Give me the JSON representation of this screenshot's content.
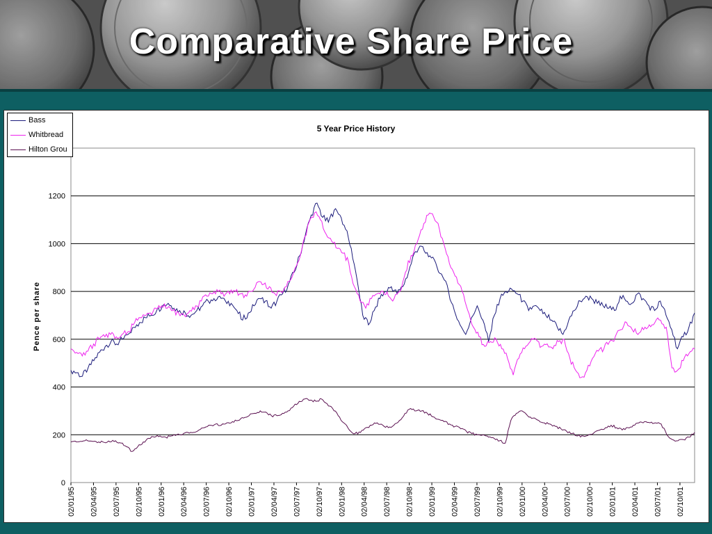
{
  "slide": {
    "title": "Comparative Share Price"
  },
  "chart_data": {
    "type": "line",
    "title": "5 Year Price History",
    "xlabel": "",
    "ylabel": "Pence per share",
    "ylim": [
      0,
      1400
    ],
    "yticks": [
      0,
      200,
      400,
      600,
      800,
      1000,
      1200
    ],
    "grid": "horizontal",
    "legend_position": "top-left",
    "x_tick_labels": [
      "02/01/95",
      "02/04/95",
      "02/07/95",
      "02/10/95",
      "02/01/96",
      "02/04/96",
      "02/07/96",
      "02/10/96",
      "02/01/97",
      "02/04/97",
      "02/07/97",
      "02/10/97",
      "02/01/98",
      "02/04/98",
      "02/07/98",
      "02/10/98",
      "02/01/99",
      "02/04/99",
      "02/07/99",
      "02/10/99",
      "02/01/00",
      "02/04/00",
      "02/07/00",
      "02/10/00",
      "02/01/01",
      "02/04/01",
      "02/07/01",
      "02/10/01"
    ],
    "series": [
      {
        "name": "Bass",
        "color": "#1a1a7a",
        "values": [
          470,
          460,
          445,
          480,
          510,
          545,
          570,
          590,
          580,
          600,
          620,
          650,
          670,
          690,
          700,
          720,
          740,
          750,
          730,
          720,
          710,
          700,
          720,
          740,
          760,
          770,
          780,
          760,
          750,
          720,
          680,
          710,
          740,
          770,
          760,
          730,
          760,
          790,
          830,
          880,
          950,
          1040,
          1120,
          1170,
          1110,
          1090,
          1140,
          1120,
          1060,
          980,
          850,
          700,
          660,
          720,
          770,
          800,
          820,
          790,
          820,
          880,
          960,
          990,
          960,
          940,
          900,
          860,
          800,
          720,
          660,
          620,
          690,
          740,
          680,
          590,
          700,
          770,
          800,
          810,
          790,
          760,
          720,
          740,
          720,
          700,
          680,
          650,
          620,
          680,
          720,
          760,
          780,
          770,
          750,
          740,
          730,
          720,
          780,
          760,
          750,
          790,
          770,
          740,
          720,
          760,
          700,
          640,
          560,
          610,
          650,
          710
        ]
      },
      {
        "name": "Whitbread",
        "color": "#ee22ee",
        "values": [
          560,
          545,
          530,
          550,
          580,
          600,
          610,
          620,
          610,
          620,
          630,
          660,
          690,
          700,
          710,
          730,
          740,
          730,
          720,
          710,
          700,
          720,
          740,
          760,
          780,
          790,
          800,
          780,
          790,
          800,
          790,
          780,
          800,
          840,
          830,
          820,
          790,
          800,
          820,
          860,
          920,
          1010,
          1090,
          1130,
          1100,
          1040,
          1010,
          980,
          960,
          920,
          820,
          760,
          730,
          770,
          790,
          800,
          780,
          770,
          800,
          880,
          950,
          1000,
          1060,
          1120,
          1110,
          1060,
          980,
          900,
          860,
          800,
          720,
          650,
          610,
          570,
          590,
          600,
          560,
          520,
          450,
          520,
          560,
          590,
          600,
          570,
          580,
          560,
          590,
          600,
          520,
          470,
          440,
          470,
          520,
          550,
          560,
          590,
          610,
          640,
          670,
          640,
          620,
          640,
          660,
          670,
          680,
          650,
          480,
          470,
          510,
          540,
          560
        ]
      },
      {
        "name": "Hilton Grou",
        "color": "#5a1050",
        "values": [
          170,
          170,
          172,
          175,
          172,
          170,
          168,
          170,
          175,
          165,
          150,
          130,
          150,
          170,
          185,
          190,
          195,
          190,
          195,
          200,
          200,
          210,
          210,
          220,
          230,
          240,
          245,
          240,
          250,
          255,
          260,
          270,
          280,
          290,
          300,
          295,
          280,
          280,
          290,
          300,
          320,
          340,
          350,
          345,
          340,
          350,
          330,
          310,
          280,
          250,
          220,
          205,
          210,
          230,
          240,
          250,
          240,
          230,
          240,
          260,
          290,
          310,
          300,
          300,
          290,
          275,
          265,
          255,
          245,
          235,
          225,
          215,
          205,
          200,
          200,
          190,
          185,
          175,
          165,
          260,
          290,
          300,
          280,
          270,
          260,
          250,
          245,
          235,
          225,
          215,
          205,
          195,
          195,
          200,
          210,
          220,
          230,
          240,
          230,
          220,
          230,
          240,
          250,
          255,
          250,
          250,
          245,
          200,
          180,
          175,
          180,
          190,
          210
        ]
      }
    ]
  }
}
